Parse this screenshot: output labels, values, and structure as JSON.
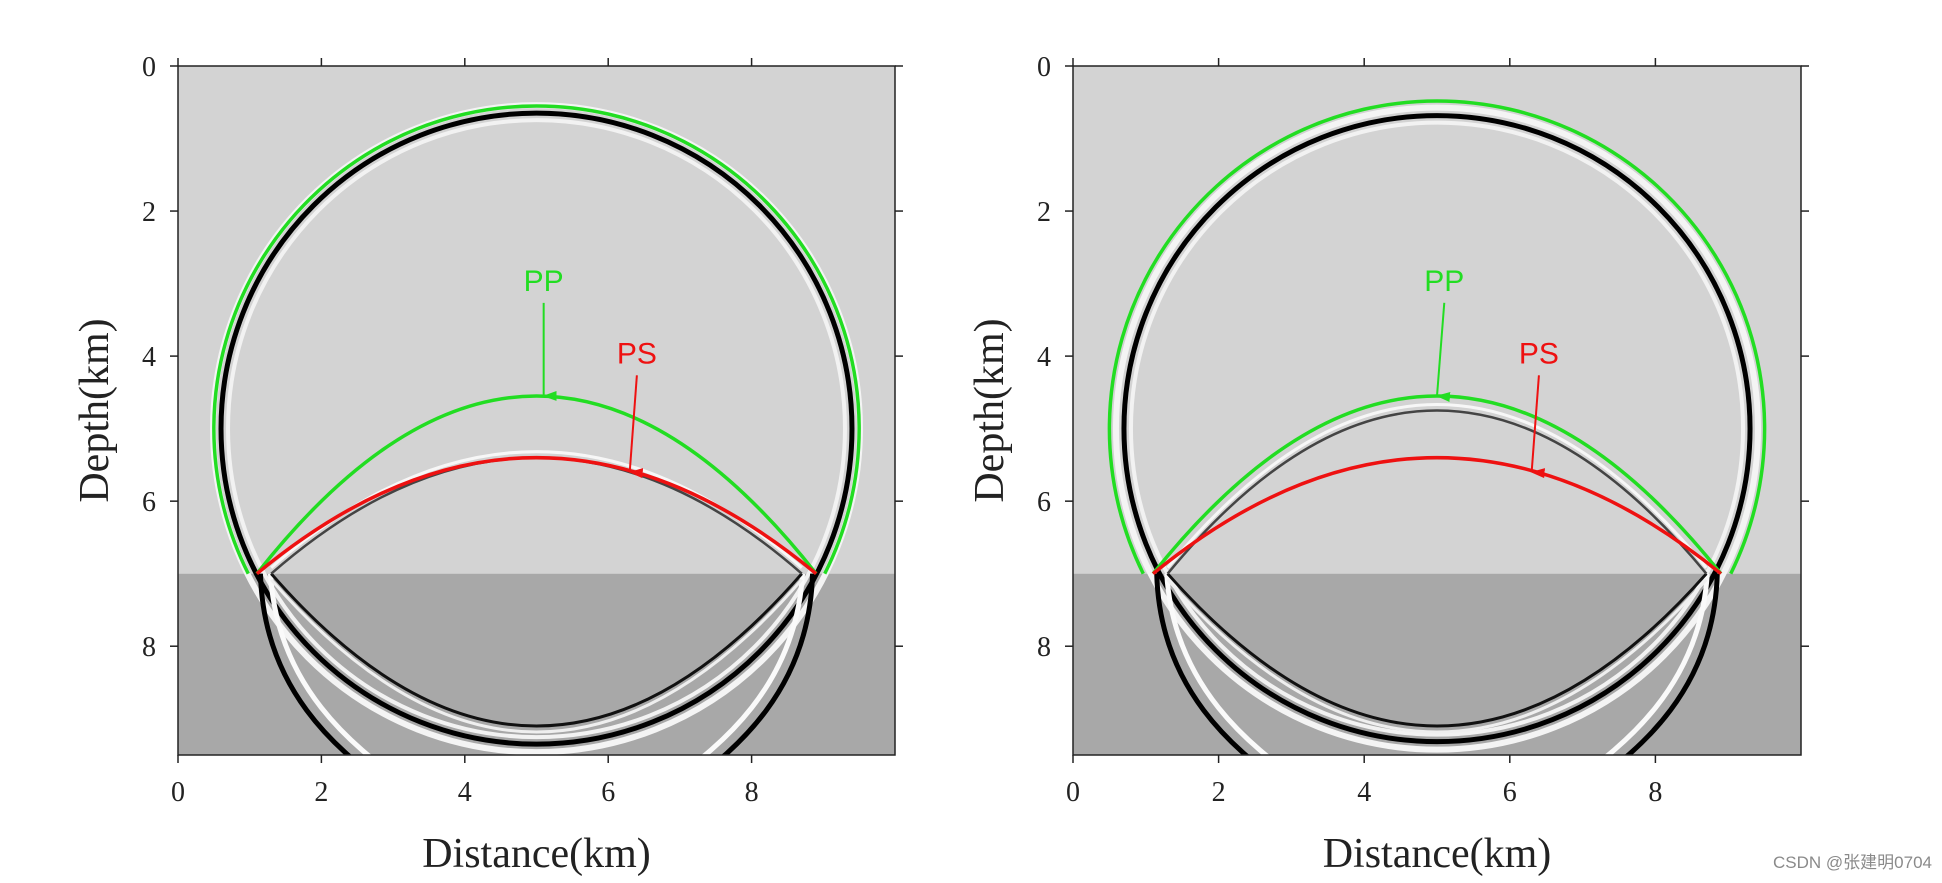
{
  "chart_data": [
    {
      "type": "seismic-wavefield",
      "xlabel": "Distance(km)",
      "ylabel": "Depth(km)",
      "xlim": [
        0,
        10
      ],
      "ylim": [
        0,
        9.5
      ],
      "y_inverted": true,
      "xticks": [
        "0",
        "2",
        "4",
        "6",
        "8"
      ],
      "yticks": [
        "0",
        "2",
        "4",
        "6",
        "8"
      ],
      "interface_depth": 7,
      "layer_colors": {
        "upper": "#d3d3d3",
        "lower": "#a8a8a8"
      },
      "wavefront_arc": {
        "center_x": 5.0,
        "center_y": 5.0,
        "radius": 4.4
      },
      "reflected_arc_apex_depth": 5.4,
      "lower_arc_apex_depth": 9.1,
      "series": [
        {
          "name": "PP",
          "color": "#22dd22",
          "crossings": [
            1.1,
            8.9
          ],
          "apex_depth": 4.55,
          "outer_radius": 4.5
        },
        {
          "name": "PS",
          "color": "#ee1111",
          "crossings": [
            1.1,
            8.9
          ],
          "apex_depth": 5.4
        }
      ],
      "annotations": [
        {
          "text": "PP",
          "color": "#22dd22",
          "label_x": 5.1,
          "label_y": 3.1,
          "arrow_to_x": 5.1,
          "arrow_to_y": 4.55
        },
        {
          "text": "PS",
          "color": "#ee1111",
          "label_x": 6.4,
          "label_y": 4.1,
          "arrow_to_x": 6.3,
          "arrow_to_y": 5.6
        }
      ]
    },
    {
      "type": "seismic-wavefield",
      "xlabel": "Distance(km)",
      "ylabel": "Depth(km)",
      "xlim": [
        0,
        10
      ],
      "ylim": [
        0,
        9.5
      ],
      "y_inverted": true,
      "xticks": [
        "0",
        "2",
        "4",
        "6",
        "8"
      ],
      "yticks": [
        "0",
        "2",
        "4",
        "6",
        "8"
      ],
      "interface_depth": 7,
      "layer_colors": {
        "upper": "#d3d3d3",
        "lower": "#a8a8a8"
      },
      "wavefront_arc": {
        "center_x": 5.0,
        "center_y": 5.0,
        "radius": 4.3
      },
      "reflected_arc_apex_depth": 4.75,
      "lower_arc_apex_depth": 9.1,
      "series": [
        {
          "name": "PP",
          "color": "#22dd22",
          "crossings": [
            1.1,
            8.9
          ],
          "apex_depth": 4.55,
          "outer_radius": 4.5
        },
        {
          "name": "PS",
          "color": "#ee1111",
          "crossings": [
            1.1,
            8.9
          ],
          "apex_depth": 5.4
        }
      ],
      "annotations": [
        {
          "text": "PP",
          "color": "#22dd22",
          "label_x": 5.1,
          "label_y": 3.1,
          "arrow_to_x": 5.0,
          "arrow_to_y": 4.55
        },
        {
          "text": "PS",
          "color": "#ee1111",
          "label_x": 6.4,
          "label_y": 4.1,
          "arrow_to_x": 6.3,
          "arrow_to_y": 5.6
        }
      ]
    }
  ],
  "watermark": "CSDN @张建明0704"
}
